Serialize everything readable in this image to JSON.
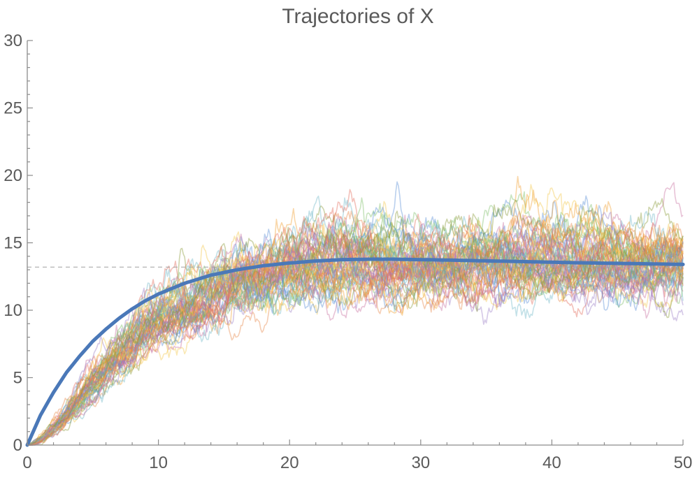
{
  "chart_data": {
    "type": "line",
    "title": "Trajectories of X",
    "xlabel": "",
    "ylabel": "",
    "xlim": [
      0,
      50
    ],
    "ylim": [
      0,
      30
    ],
    "x_ticks": [
      0,
      10,
      20,
      30,
      40,
      50
    ],
    "y_ticks": [
      0,
      5,
      10,
      15,
      20,
      25,
      30
    ],
    "reference_line": {
      "y": 13.2,
      "style": "dashed"
    },
    "grid": false,
    "legend": "none",
    "trajectory_count": 60,
    "trajectory_colors": [
      "#5b8fd6",
      "#f0a033",
      "#7fbf6a",
      "#e26b5a",
      "#9b7fc6",
      "#f2c94c",
      "#6fb7c9",
      "#c96fa0",
      "#8a9a3a",
      "#e8894a"
    ],
    "mean_series": {
      "color": "#4a78b8",
      "x": [
        0,
        1,
        2,
        3,
        4,
        5,
        6,
        7,
        8,
        9,
        10,
        12,
        14,
        16,
        18,
        20,
        22,
        24,
        26,
        28,
        30,
        32,
        34,
        36,
        38,
        40,
        42,
        44,
        46,
        48,
        50
      ],
      "y": [
        0,
        2.2,
        3.9,
        5.4,
        6.6,
        7.7,
        8.6,
        9.4,
        10.1,
        10.7,
        11.2,
        12.0,
        12.6,
        13.0,
        13.3,
        13.5,
        13.65,
        13.75,
        13.78,
        13.78,
        13.75,
        13.72,
        13.68,
        13.64,
        13.6,
        13.56,
        13.52,
        13.49,
        13.46,
        13.43,
        13.4
      ]
    }
  }
}
